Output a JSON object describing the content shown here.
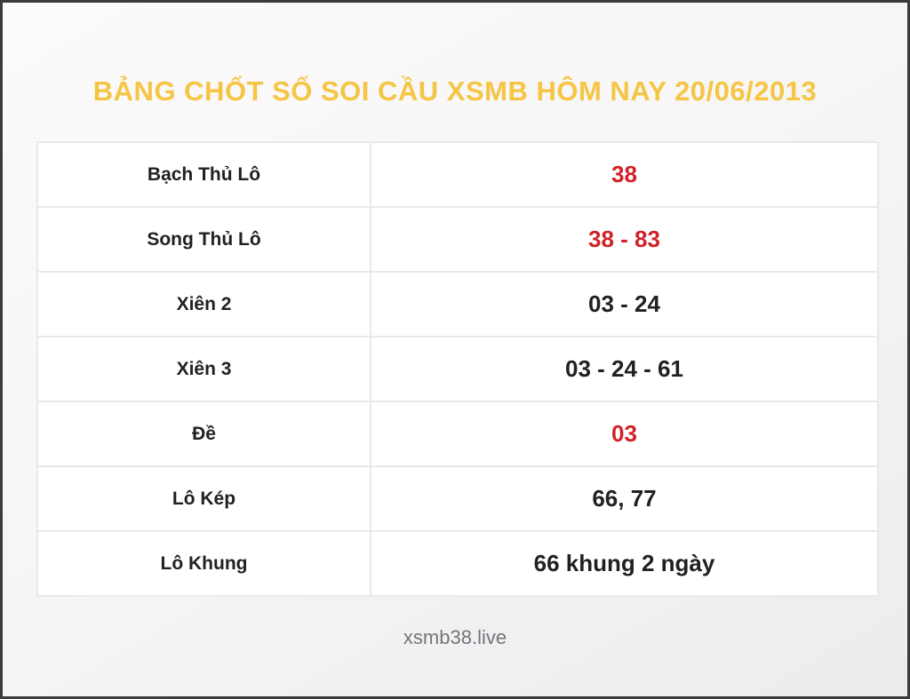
{
  "page": {
    "title": "BẢNG CHỐT SỐ SOI CẦU XSMB HÔM NAY 20/06/2013",
    "footer": "xsmb38.live"
  },
  "colors": {
    "title_gold": "#f6c544",
    "value_red": "#d12228",
    "value_dark": "#212121",
    "table_border": "#e9e9e9",
    "frame_border": "#3b3b3d",
    "footer_gray": "#75757a"
  },
  "table": {
    "rows": [
      {
        "label": "Bạch Thủ Lô",
        "value": "38",
        "highlight": true
      },
      {
        "label": "Song Thủ Lô",
        "value": "38 - 83",
        "highlight": true
      },
      {
        "label": "Xiên 2",
        "value": "03 - 24",
        "highlight": false
      },
      {
        "label": "Xiên 3",
        "value": "03 - 24 - 61",
        "highlight": false
      },
      {
        "label": "Đề",
        "value": "03",
        "highlight": true
      },
      {
        "label": "Lô Kép",
        "value": "66, 77",
        "highlight": false
      },
      {
        "label": "Lô Khung",
        "value": "66 khung 2 ngày",
        "highlight": false
      }
    ]
  }
}
